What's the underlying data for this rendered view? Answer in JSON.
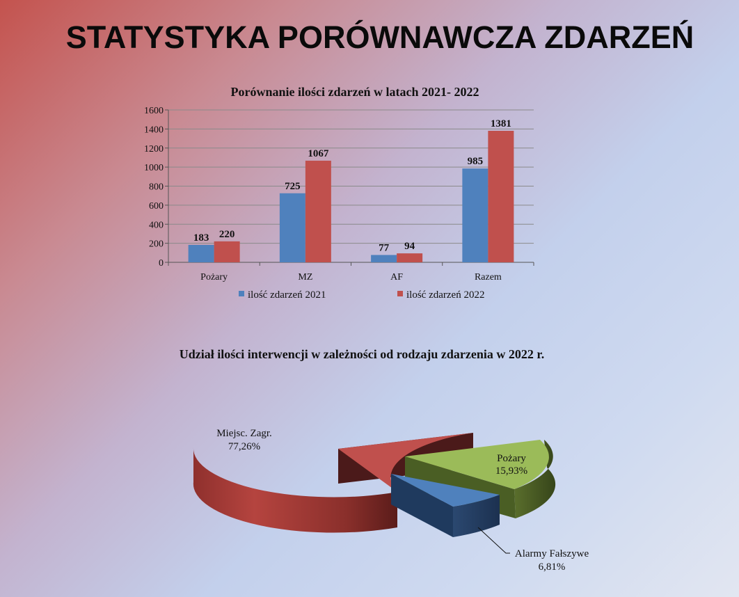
{
  "slide": {
    "title": "STATYSTYKA PORÓWNAWCZA ZDARZEŃ"
  },
  "colors": {
    "s2021": "#4f81bd",
    "s2022": "#c0504d",
    "pie_mz": "#c0504d",
    "pie_pozary": "#9bbb59",
    "pie_af": "#4f81bd"
  },
  "chart_data": [
    {
      "type": "bar",
      "title": "Porównanie  ilości  zdarzeń  w latach 2021- 2022",
      "categories": [
        "Pożary",
        "MZ",
        "AF",
        "Razem"
      ],
      "series": [
        {
          "name": "ilość zdarzeń 2021",
          "values": [
            183,
            725,
            77,
            985
          ]
        },
        {
          "name": "ilość zdarzeń 2022",
          "values": [
            220,
            1067,
            94,
            1381
          ]
        }
      ],
      "yticks": [
        "0",
        "200",
        "400",
        "600",
        "800",
        "1000",
        "1200",
        "1400",
        "1600"
      ],
      "ylim": [
        0,
        1600
      ],
      "grid": true,
      "legend": "bottom"
    },
    {
      "type": "pie",
      "title": "Udział ilości interwencji  w zależności od  rodzaju  zdarzenia w 2022 r.",
      "slices": [
        {
          "name": "Miejsc. Zagr.",
          "label": "77,26%",
          "value": 77.26
        },
        {
          "name": "Pożary",
          "label": "15,93%",
          "value": 15.93
        },
        {
          "name": "Alarmy Fałszywe",
          "label": "6,81%",
          "value": 6.81
        }
      ]
    }
  ]
}
